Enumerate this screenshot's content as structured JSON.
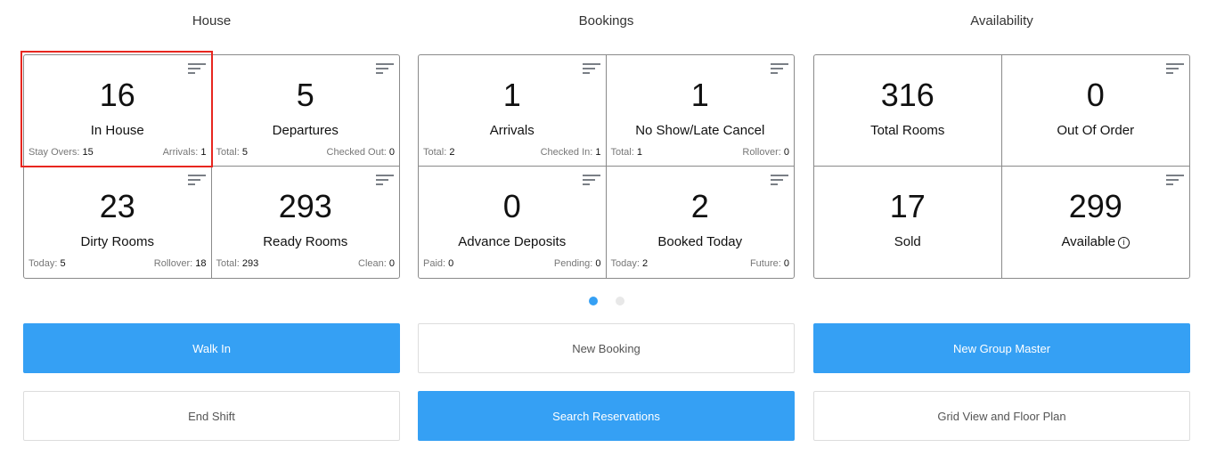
{
  "sections": [
    {
      "title": "House",
      "cells": [
        {
          "value": "16",
          "label": "In House",
          "left_label": "Stay Overs:",
          "left_value": "15",
          "right_label": "Arrivals:",
          "right_value": "1",
          "filter": true
        },
        {
          "value": "5",
          "label": "Departures",
          "left_label": "Total:",
          "left_value": "5",
          "right_label": "Checked Out:",
          "right_value": "0",
          "filter": true
        },
        {
          "value": "23",
          "label": "Dirty Rooms",
          "left_label": "Today:",
          "left_value": "5",
          "right_label": "Rollover:",
          "right_value": "18",
          "filter": true
        },
        {
          "value": "293",
          "label": "Ready Rooms",
          "left_label": "Total:",
          "left_value": "293",
          "right_label": "Clean:",
          "right_value": "0",
          "filter": true
        }
      ]
    },
    {
      "title": "Bookings",
      "cells": [
        {
          "value": "1",
          "label": "Arrivals",
          "left_label": "Total:",
          "left_value": "2",
          "right_label": "Checked In:",
          "right_value": "1",
          "filter": true
        },
        {
          "value": "1",
          "label": "No Show/Late Cancel",
          "left_label": "Total:",
          "left_value": "1",
          "right_label": "Rollover:",
          "right_value": "0",
          "filter": true
        },
        {
          "value": "0",
          "label": "Advance Deposits",
          "left_label": "Paid:",
          "left_value": "0",
          "right_label": "Pending:",
          "right_value": "0",
          "filter": true
        },
        {
          "value": "2",
          "label": "Booked Today",
          "left_label": "Today:",
          "left_value": "2",
          "right_label": "Future:",
          "right_value": "0",
          "filter": true
        }
      ]
    },
    {
      "title": "Availability",
      "cells": [
        {
          "value": "316",
          "label": "Total Rooms",
          "filter": false
        },
        {
          "value": "0",
          "label": "Out Of Order",
          "filter": true
        },
        {
          "value": "17",
          "label": "Sold",
          "filter": false
        },
        {
          "value": "299",
          "label": "Available",
          "filter": true,
          "info": true
        }
      ]
    }
  ],
  "carousel": {
    "pages": 2,
    "active": 1
  },
  "buttons": [
    {
      "label": "Walk In",
      "primary": true
    },
    {
      "label": "New Booking",
      "primary": false
    },
    {
      "label": "New Group Master",
      "primary": true
    },
    {
      "label": "End Shift",
      "primary": false
    },
    {
      "label": "Search Reservations",
      "primary": true
    },
    {
      "label": "Grid View and Floor Plan",
      "primary": false
    }
  ],
  "colors": {
    "primary": "#35a0f4",
    "highlight": "#e8261f"
  }
}
